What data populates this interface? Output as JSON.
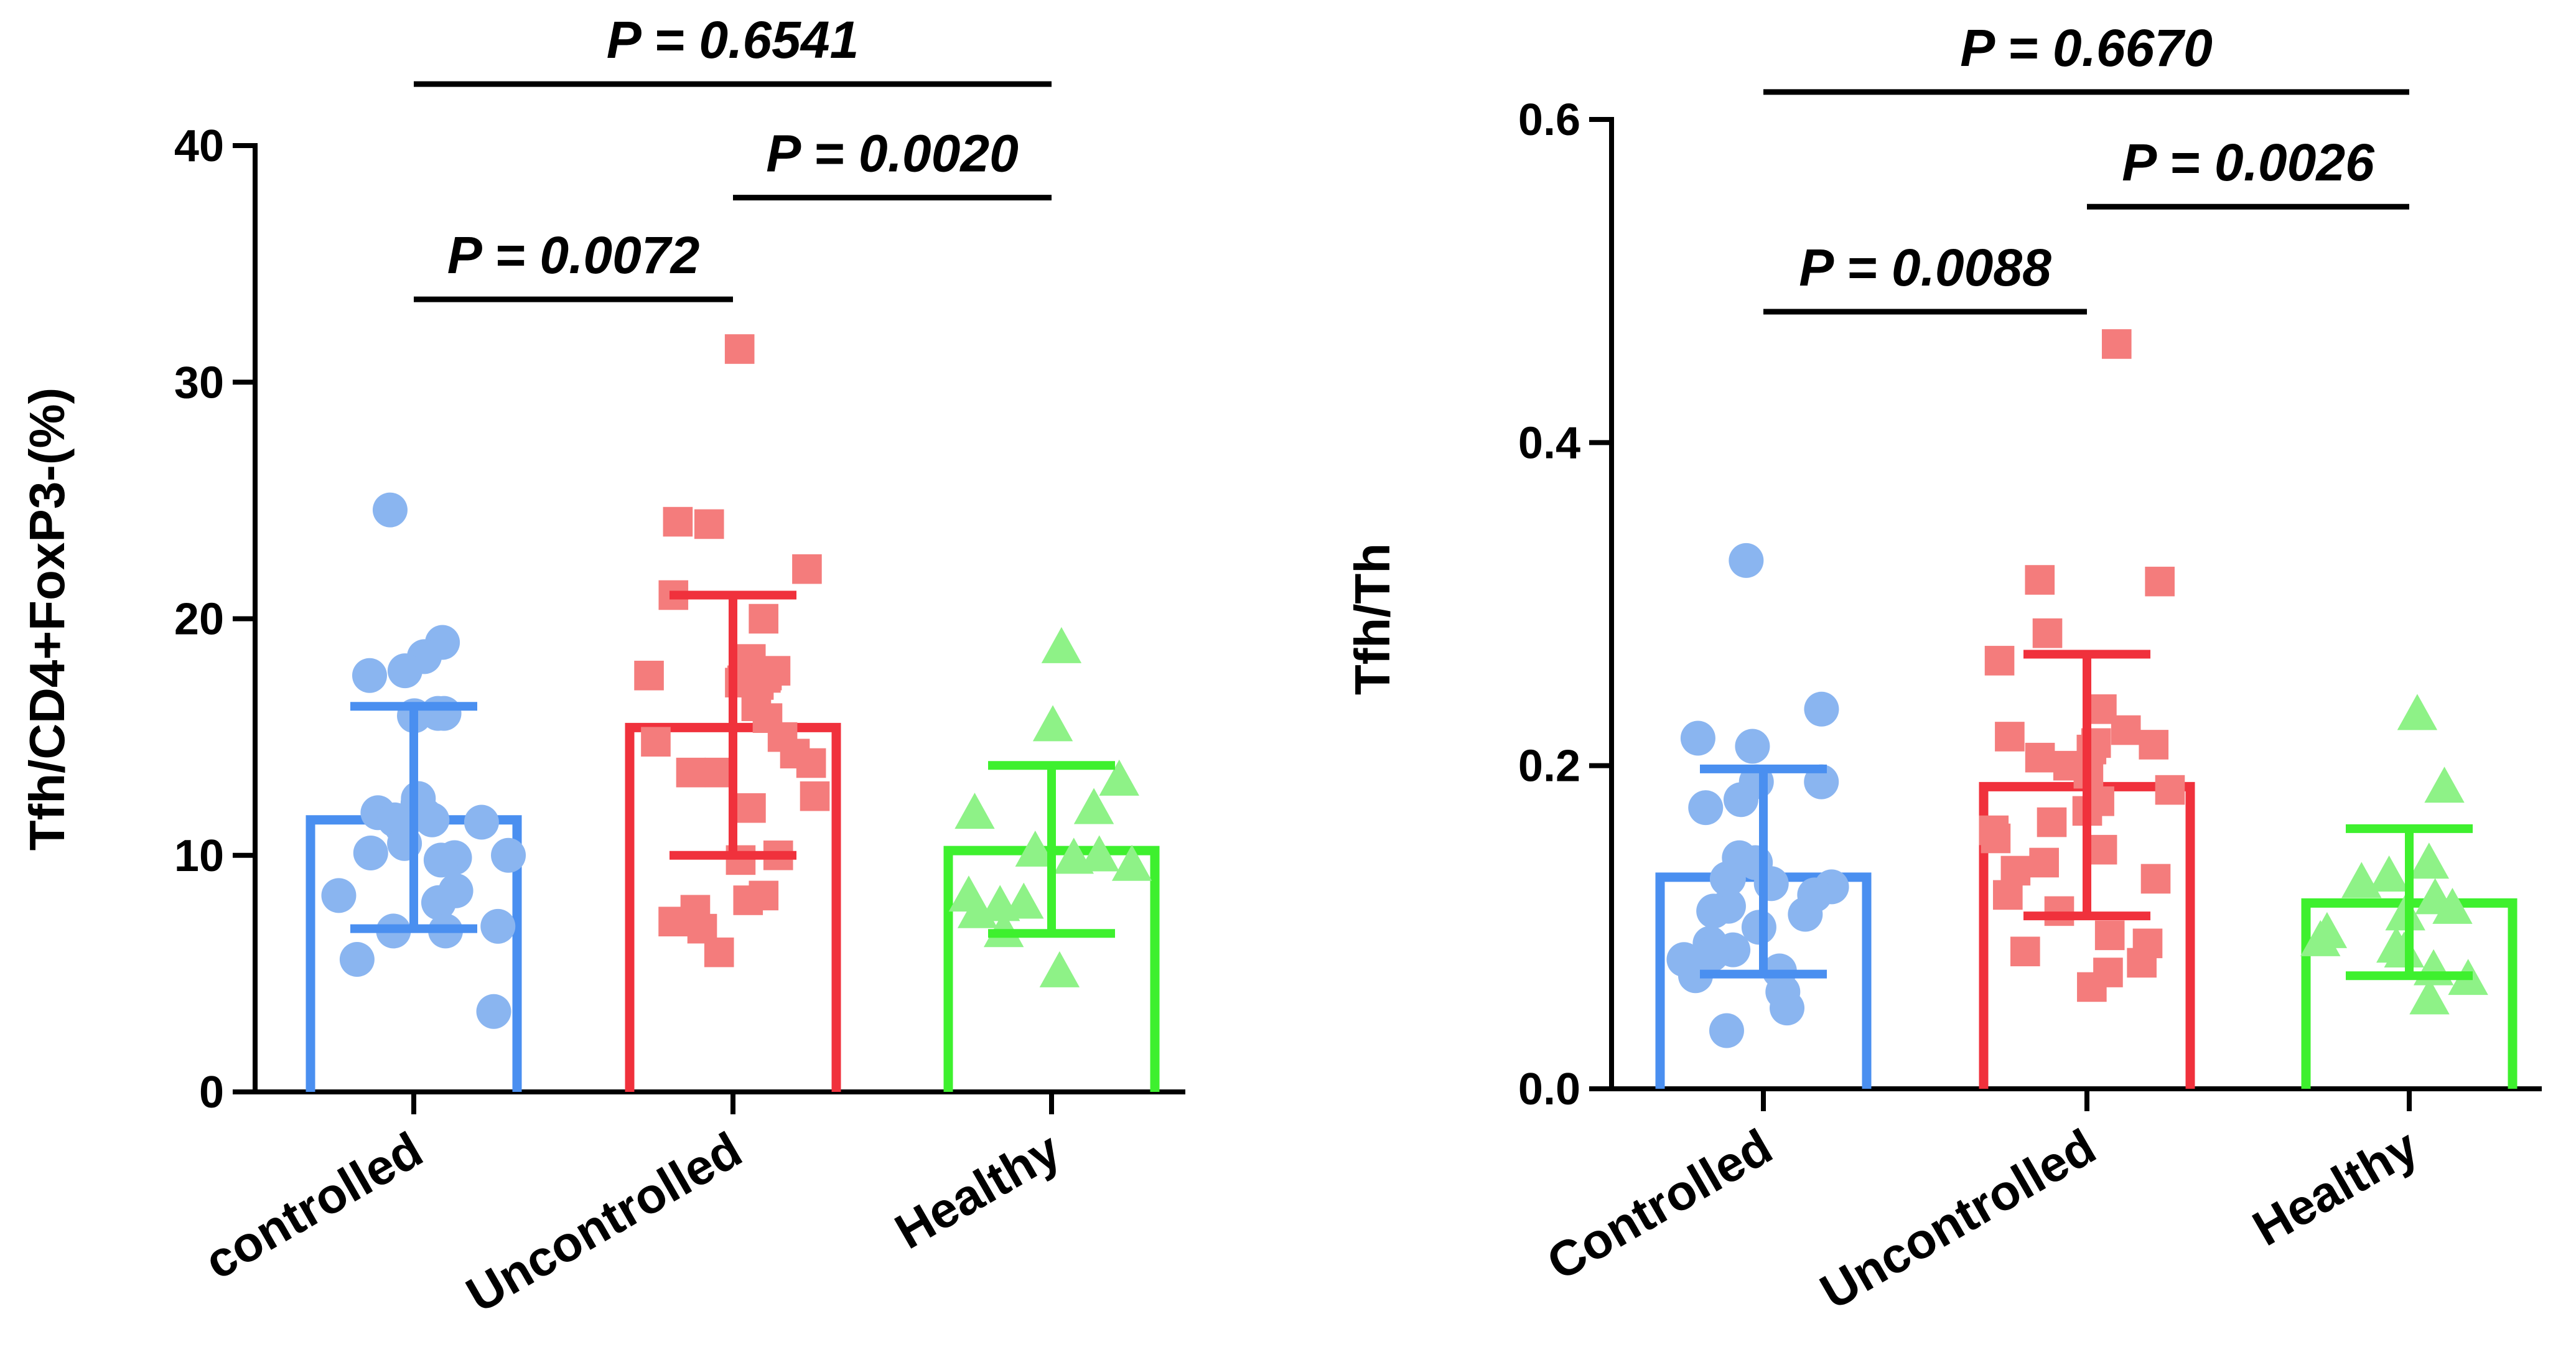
{
  "chart_data": [
    {
      "type": "bar",
      "ylabel": "Tfh/CD4+FoxP3-(%)",
      "ylim": [
        0,
        40
      ],
      "yticks": [
        0,
        10,
        20,
        30,
        40
      ],
      "categories": [
        "controlled",
        "Uncontrolled",
        "Healthy"
      ],
      "colors": [
        "#4a8ff0",
        "#f0313c",
        "#3ef02e"
      ],
      "point_colors": [
        "#8ab5f0",
        "#f47c7c",
        "#8ef287"
      ],
      "markers": [
        "circle",
        "square",
        "triangle"
      ],
      "means": [
        11.5,
        15.4,
        10.2
      ],
      "error_low": [
        6.9,
        10.0,
        6.7
      ],
      "error_high": [
        16.3,
        21.0,
        13.8
      ],
      "points": [
        [
          24.6,
          19.0,
          18.4,
          17.8,
          17.6,
          16.0,
          16.0,
          15.9,
          12.4,
          12.2,
          11.8,
          11.7,
          11.5,
          11.5,
          11.4,
          11.2,
          10.5,
          10.1,
          10.0,
          9.9,
          9.8,
          8.5,
          8.3,
          8.0,
          7.0,
          6.8,
          6.8,
          5.6,
          3.4
        ],
        [
          31.4,
          24.1,
          24.0,
          22.1,
          21.0,
          20.0,
          18.3,
          17.8,
          17.6,
          17.6,
          17.5,
          17.4,
          17.3,
          17.2,
          16.3,
          15.8,
          15.0,
          14.8,
          14.3,
          13.9,
          13.5,
          13.5,
          12.5,
          12.0,
          10.0,
          9.8,
          8.3,
          8.1,
          7.7,
          7.2,
          6.9,
          5.9
        ],
        [
          18.8,
          15.5,
          13.2,
          12.0,
          11.8,
          10.2,
          10.0,
          9.9,
          9.6,
          8.3,
          8.0,
          7.9,
          7.6,
          6.8,
          5.1
        ]
      ],
      "comparisons": [
        {
          "pair": [
            0,
            1
          ],
          "label": "P = 0.0072",
          "y": 33.5
        },
        {
          "pair": [
            1,
            2
          ],
          "label": "P = 0.0020",
          "y": 37.8
        },
        {
          "pair": [
            0,
            2
          ],
          "label": "P = 0.6541",
          "y": 42.6
        }
      ]
    },
    {
      "type": "bar",
      "ylabel": "Tfh/Th",
      "ylim": [
        0,
        0.6
      ],
      "yticks": [
        "0.0",
        "0.2",
        "0.4",
        "0.6"
      ],
      "categories": [
        "Controlled",
        "Uncontrolled",
        "Healthy"
      ],
      "colors": [
        "#4a8ff0",
        "#f0313c",
        "#3ef02e"
      ],
      "point_colors": [
        "#8ab5f0",
        "#f47c7c",
        "#8ef287"
      ],
      "markers": [
        "circle",
        "square",
        "triangle"
      ],
      "means": [
        0.131,
        0.187,
        0.115
      ],
      "error_low": [
        0.071,
        0.107,
        0.07
      ],
      "error_high": [
        0.198,
        0.269,
        0.161
      ],
      "points": [
        [
          0.327,
          0.235,
          0.217,
          0.212,
          0.19,
          0.19,
          0.179,
          0.174,
          0.143,
          0.14,
          0.13,
          0.13,
          0.127,
          0.125,
          0.12,
          0.113,
          0.11,
          0.108,
          0.1,
          0.09,
          0.086,
          0.083,
          0.08,
          0.073,
          0.07,
          0.06,
          0.05,
          0.036
        ],
        [
          0.461,
          0.315,
          0.314,
          0.282,
          0.265,
          0.235,
          0.222,
          0.218,
          0.214,
          0.213,
          0.21,
          0.205,
          0.2,
          0.195,
          0.185,
          0.178,
          0.172,
          0.165,
          0.16,
          0.155,
          0.148,
          0.14,
          0.135,
          0.13,
          0.12,
          0.11,
          0.095,
          0.09,
          0.085,
          0.078,
          0.072,
          0.063
        ],
        [
          0.232,
          0.187,
          0.14,
          0.132,
          0.128,
          0.118,
          0.112,
          0.108,
          0.097,
          0.092,
          0.088,
          0.085,
          0.074,
          0.068,
          0.056
        ]
      ],
      "comparisons": [
        {
          "pair": [
            0,
            1
          ],
          "label": "P = 0.0088",
          "y": 0.481
        },
        {
          "pair": [
            1,
            2
          ],
          "label": "P = 0.0026",
          "y": 0.546
        },
        {
          "pair": [
            0,
            2
          ],
          "label": "P = 0.6670",
          "y": 0.617
        }
      ]
    }
  ]
}
